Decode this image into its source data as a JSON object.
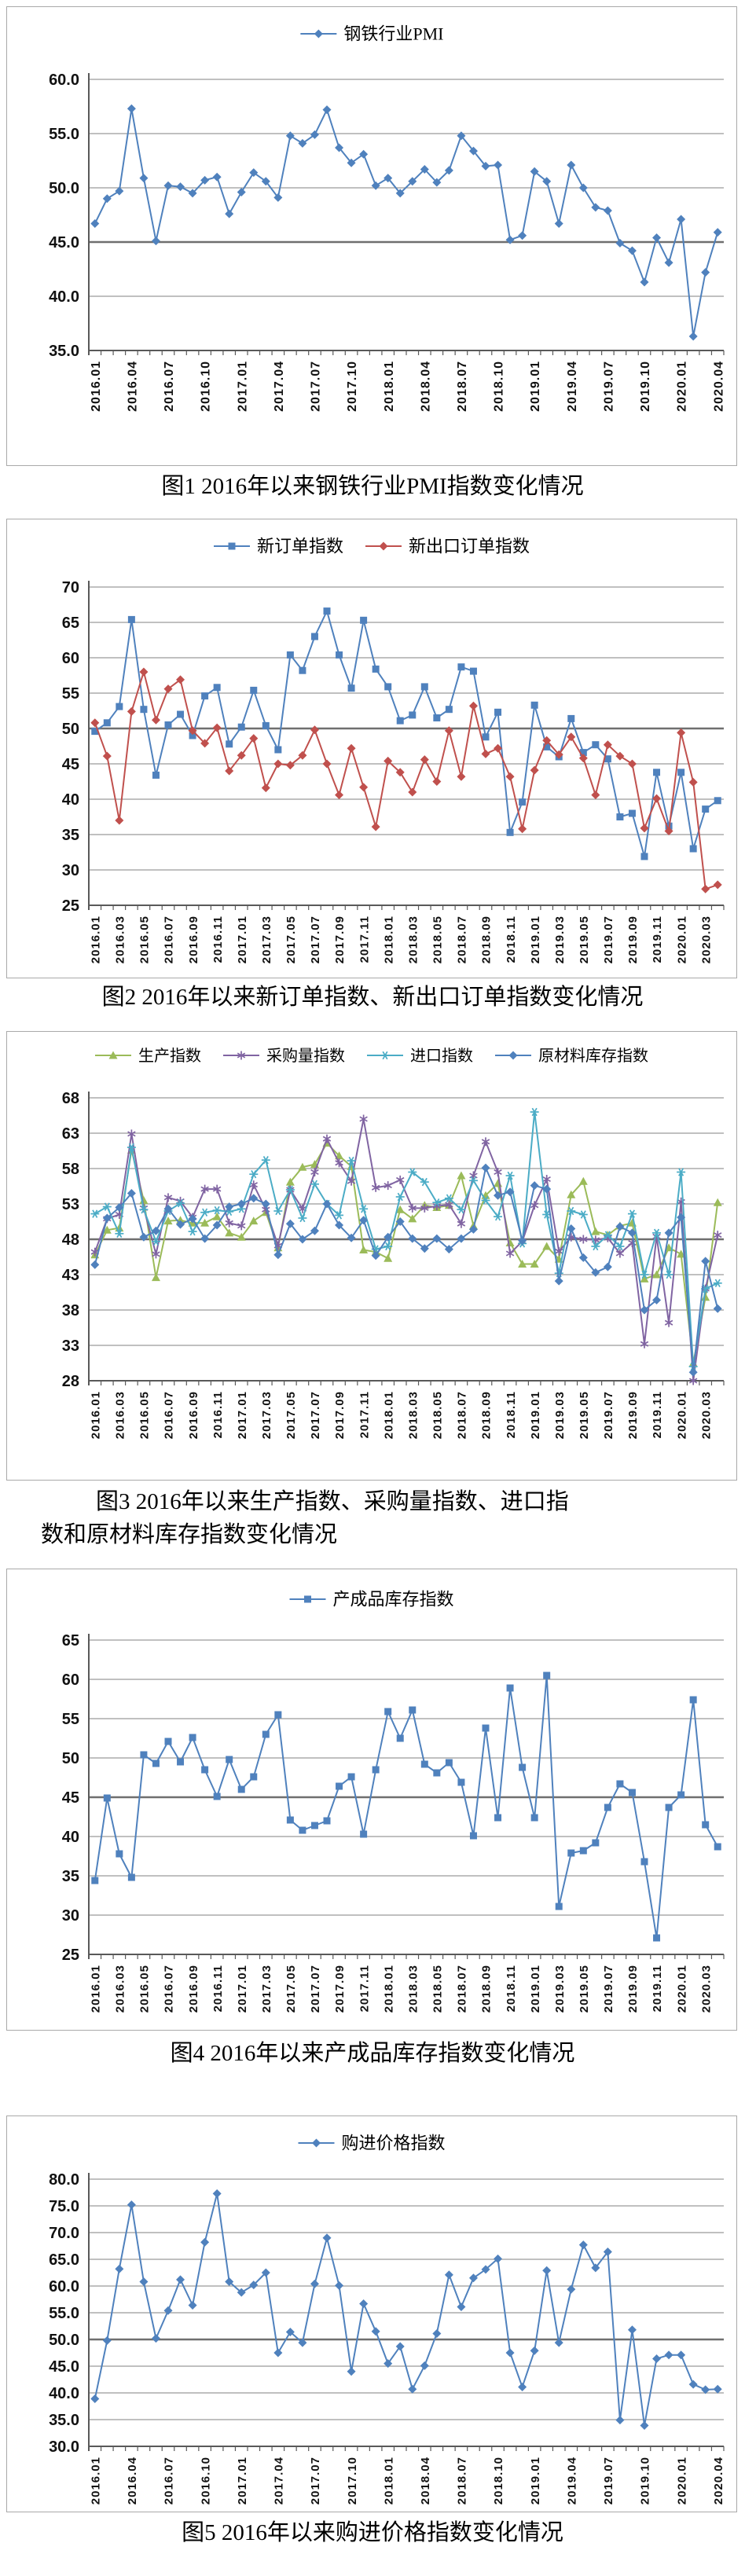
{
  "page": {
    "background": "#ffffff"
  },
  "colors": {
    "blue": "#4F81BD",
    "red": "#C0504D",
    "green": "#9BBB59",
    "purple": "#8064A2",
    "cyan": "#4BACC6",
    "grid": "#9a9a9a",
    "grid_bold": "#6f6f6f",
    "axis": "#595959",
    "text": "#000000",
    "box_border": "#a9a9a9"
  },
  "chart_data": [
    {
      "type": "line",
      "caption": "图1 2016年以来钢铁行业PMI指数变化情况",
      "legend_position": "top",
      "categories": [
        "2016.01",
        "2016.02",
        "2016.03",
        "2016.04",
        "2016.05",
        "2016.06",
        "2016.07",
        "2016.08",
        "2016.09",
        "2016.10",
        "2016.11",
        "2016.12",
        "2017.01",
        "2017.02",
        "2017.03",
        "2017.04",
        "2017.05",
        "2017.06",
        "2017.07",
        "2017.08",
        "2017.09",
        "2017.10",
        "2017.11",
        "2017.12",
        "2018.01",
        "2018.02",
        "2018.03",
        "2018.04",
        "2018.05",
        "2018.06",
        "2018.07",
        "2018.08",
        "2018.09",
        "2018.10",
        "2018.11",
        "2018.12",
        "2019.01",
        "2019.02",
        "2019.03",
        "2019.04",
        "2019.05",
        "2019.06",
        "2019.07",
        "2019.08",
        "2019.09",
        "2019.10",
        "2019.11",
        "2019.12",
        "2020.01",
        "2020.02",
        "2020.03",
        "2020.04"
      ],
      "x_ticks": {
        "interval": 3,
        "labels": [
          "2016.01",
          "2016.04",
          "2016.07",
          "2016.10",
          "2017.01",
          "2017.04",
          "2017.07",
          "2017.10",
          "2018.01",
          "2018.04",
          "2018.07",
          "2018.10",
          "2019.01",
          "2019.04",
          "2019.07",
          "2019.10",
          "2020.01",
          "2020.04"
        ]
      },
      "y_axis": {
        "min": 35,
        "max": 60,
        "step": 5,
        "decimals": 1,
        "bold": 45
      },
      "series": [
        {
          "name": "钢铁行业PMI",
          "marker": "diamond",
          "color": "blue",
          "values": [
            46.7,
            49.0,
            49.7,
            57.3,
            50.9,
            45.1,
            50.2,
            50.1,
            49.5,
            50.7,
            51.0,
            47.6,
            49.6,
            51.4,
            50.6,
            49.1,
            54.8,
            54.1,
            54.9,
            57.2,
            53.7,
            52.3,
            53.1,
            50.2,
            50.9,
            49.5,
            50.6,
            51.7,
            50.5,
            51.6,
            54.8,
            53.4,
            52.0,
            52.1,
            45.2,
            45.6,
            51.5,
            50.6,
            46.7,
            52.1,
            50.0,
            48.2,
            47.9,
            44.9,
            44.2,
            41.3,
            45.4,
            43.1,
            47.1,
            36.3,
            42.2,
            45.9
          ]
        }
      ]
    },
    {
      "type": "line",
      "caption": "图2 2016年以来新订单指数、新出口订单指数变化情况",
      "legend_position": "top",
      "categories": [
        "2016.01",
        "2016.02",
        "2016.03",
        "2016.04",
        "2016.05",
        "2016.06",
        "2016.07",
        "2016.08",
        "2016.09",
        "2016.10",
        "2016.11",
        "2016.12",
        "2017.01",
        "2017.02",
        "2017.03",
        "2017.04",
        "2017.05",
        "2017.06",
        "2017.07",
        "2017.08",
        "2017.09",
        "2017.10",
        "2017.11",
        "2017.12",
        "2018.01",
        "2018.02",
        "2018.03",
        "2018.04",
        "2018.05",
        "2018.06",
        "2018.07",
        "2018.08",
        "2018.09",
        "2018.10",
        "2018.11",
        "2018.12",
        "2019.01",
        "2019.02",
        "2019.03",
        "2019.04",
        "2019.05",
        "2019.06",
        "2019.07",
        "2019.08",
        "2019.09",
        "2019.10",
        "2019.11",
        "2019.12",
        "2020.01",
        "2020.02",
        "2020.03",
        "2020.04"
      ],
      "x_ticks": {
        "interval": 2,
        "labels": [
          "2016.01",
          "2016.03",
          "2016.05",
          "2016.07",
          "2016.09",
          "2016.11",
          "2017.01",
          "2017.03",
          "2017.05",
          "2017.07",
          "2017.09",
          "2017.11",
          "2018.01",
          "2018.03",
          "2018.05",
          "2018.07",
          "2018.09",
          "2018.11",
          "2019.01",
          "2019.03",
          "2019.05",
          "2019.07",
          "2019.09",
          "2019.11",
          "2020.01",
          "2020.03"
        ]
      },
      "y_axis": {
        "min": 25,
        "max": 70,
        "step": 5,
        "decimals": 0,
        "bold": 50
      },
      "series": [
        {
          "name": "新订单指数",
          "marker": "square",
          "color": "blue",
          "values": [
            49.6,
            50.8,
            53.1,
            65.4,
            52.7,
            43.4,
            50.5,
            52.0,
            49.0,
            54.6,
            55.8,
            47.8,
            50.2,
            55.4,
            50.4,
            47.0,
            60.4,
            58.2,
            63.0,
            66.6,
            60.4,
            55.7,
            65.3,
            58.4,
            55.9,
            51.1,
            51.9,
            55.9,
            51.5,
            52.7,
            58.7,
            58.1,
            48.8,
            52.3,
            35.3,
            39.6,
            53.3,
            47.4,
            46.0,
            51.4,
            46.6,
            47.7,
            45.7,
            37.5,
            38.0,
            31.9,
            43.8,
            36.2,
            43.8,
            33.0,
            38.6,
            39.8
          ]
        },
        {
          "name": "新出口订单指数",
          "marker": "diamond",
          "color": "red",
          "values": [
            50.8,
            46.1,
            37.0,
            52.4,
            58.0,
            51.2,
            55.6,
            56.9,
            49.7,
            47.9,
            50.1,
            44.0,
            46.2,
            48.6,
            41.6,
            45.0,
            44.8,
            46.2,
            49.8,
            45.0,
            40.6,
            47.2,
            41.7,
            36.1,
            45.4,
            43.8,
            41.0,
            45.6,
            42.5,
            49.7,
            43.2,
            53.2,
            46.4,
            47.2,
            43.2,
            35.8,
            44.1,
            48.3,
            46.3,
            48.8,
            45.8,
            40.6,
            47.7,
            46.1,
            45.0,
            35.9,
            40.1,
            35.5,
            49.4,
            42.4,
            27.3,
            27.9
          ]
        }
      ]
    },
    {
      "type": "line",
      "caption": "图3 2016年以来生产指数、采购量指数、进口指数和原材料库存指数变化情况",
      "caption_lines": [
        "图3 2016年以来生产指数、采购量指数、进口指",
        "数和原材料库存指数变化情况"
      ],
      "legend_position": "top",
      "categories": [
        "2016.01",
        "2016.02",
        "2016.03",
        "2016.04",
        "2016.05",
        "2016.06",
        "2016.07",
        "2016.08",
        "2016.09",
        "2016.10",
        "2016.11",
        "2016.12",
        "2017.01",
        "2017.02",
        "2017.03",
        "2017.04",
        "2017.05",
        "2017.06",
        "2017.07",
        "2017.08",
        "2017.09",
        "2017.10",
        "2017.11",
        "2017.12",
        "2018.01",
        "2018.02",
        "2018.03",
        "2018.04",
        "2018.05",
        "2018.06",
        "2018.07",
        "2018.08",
        "2018.09",
        "2018.10",
        "2018.11",
        "2018.12",
        "2019.01",
        "2019.02",
        "2019.03",
        "2019.04",
        "2019.05",
        "2019.06",
        "2019.07",
        "2019.08",
        "2019.09",
        "2019.10",
        "2019.11",
        "2019.12",
        "2020.01",
        "2020.02",
        "2020.03",
        "2020.04"
      ],
      "x_ticks": {
        "interval": 2,
        "labels": [
          "2016.01",
          "2016.03",
          "2016.05",
          "2016.07",
          "2016.09",
          "2016.11",
          "2017.01",
          "2017.03",
          "2017.05",
          "2017.07",
          "2017.09",
          "2017.11",
          "2018.01",
          "2018.03",
          "2018.05",
          "2018.07",
          "2018.09",
          "2018.11",
          "2019.01",
          "2019.03",
          "2019.05",
          "2019.07",
          "2019.09",
          "2019.11",
          "2020.01",
          "2020.03"
        ]
      },
      "y_axis": {
        "min": 28,
        "max": 68,
        "step": 5,
        "decimals": 0,
        "bold": 48
      },
      "series": [
        {
          "name": "生产指数",
          "marker": "triangle",
          "color": "green",
          "values": [
            45.8,
            49.3,
            49.6,
            60.6,
            53.5,
            42.6,
            50.6,
            50.7,
            50.3,
            50.3,
            51.2,
            48.9,
            48.3,
            50.6,
            51.8,
            46.8,
            56.1,
            58.2,
            58.6,
            61.6,
            59.8,
            58.3,
            46.5,
            46.2,
            45.3,
            52.2,
            50.9,
            52.8,
            52.5,
            52.8,
            57.0,
            49.9,
            54.2,
            55.9,
            47.5,
            44.5,
            44.5,
            47.0,
            45.2,
            54.3,
            56.2,
            49.1,
            48.6,
            49.9,
            50.3,
            42.4,
            43.0,
            46.8,
            45.9,
            30.5,
            39.8,
            53.2
          ]
        },
        {
          "name": "采购量指数",
          "marker": "asterisk",
          "color": "purple",
          "values": [
            46.2,
            50.9,
            51.5,
            62.9,
            52.4,
            45.9,
            53.9,
            53.4,
            51.1,
            55.1,
            55.1,
            50.3,
            49.9,
            55.7,
            52.2,
            47.1,
            55.0,
            52.3,
            57.5,
            62.2,
            58.8,
            56.2,
            65.0,
            55.3,
            55.6,
            56.4,
            52.4,
            52.4,
            52.7,
            52.9,
            50.2,
            57.0,
            61.8,
            57.5,
            46.0,
            47.7,
            52.8,
            56.5,
            46.3,
            48.3,
            48.0,
            47.9,
            48.2,
            46.0,
            47.5,
            33.2,
            48.4,
            36.2,
            53.3,
            28.0,
            41.0,
            48.6
          ]
        },
        {
          "name": "进口指数",
          "marker": "snowflake",
          "color": "cyan",
          "values": [
            51.6,
            52.6,
            48.8,
            61.0,
            52.2,
            47.7,
            52.0,
            53.1,
            49.1,
            51.8,
            52.1,
            51.9,
            52.3,
            57.2,
            59.2,
            52.0,
            55.0,
            51.0,
            55.8,
            53.0,
            51.4,
            59.1,
            52.3,
            46.6,
            47.0,
            54.0,
            57.5,
            56.1,
            53.2,
            53.8,
            52.2,
            56.3,
            53.5,
            51.2,
            57.0,
            47.4,
            66.0,
            51.5,
            43.2,
            52.0,
            51.5,
            47.0,
            48.6,
            47.0,
            51.6,
            43.0,
            48.9,
            43.0,
            57.5,
            30.0,
            41.0,
            41.8
          ]
        },
        {
          "name": "原材料库存指数",
          "marker": "diamond",
          "color": "blue",
          "values": [
            44.4,
            51.0,
            52.5,
            54.5,
            48.3,
            49.2,
            52.3,
            50.1,
            50.9,
            48.1,
            50.0,
            52.6,
            53.0,
            53.8,
            53.0,
            45.8,
            50.2,
            48.0,
            49.2,
            53.0,
            50.0,
            48.2,
            50.7,
            45.7,
            48.3,
            50.5,
            48.1,
            46.7,
            48.1,
            46.6,
            48.1,
            49.4,
            58.1,
            54.2,
            54.7,
            47.8,
            55.6,
            55.1,
            42.1,
            49.5,
            45.4,
            43.3,
            44.1,
            49.8,
            48.9,
            38.0,
            39.4,
            48.9,
            51.1,
            29.2,
            44.9,
            38.2
          ]
        }
      ]
    },
    {
      "type": "line",
      "caption": "图4 2016年以来产成品库存指数变化情况",
      "legend_position": "top",
      "categories": [
        "2016.01",
        "2016.02",
        "2016.03",
        "2016.04",
        "2016.05",
        "2016.06",
        "2016.07",
        "2016.08",
        "2016.09",
        "2016.10",
        "2016.11",
        "2016.12",
        "2017.01",
        "2017.02",
        "2017.03",
        "2017.04",
        "2017.05",
        "2017.06",
        "2017.07",
        "2017.08",
        "2017.09",
        "2017.10",
        "2017.11",
        "2017.12",
        "2018.01",
        "2018.02",
        "2018.03",
        "2018.04",
        "2018.05",
        "2018.06",
        "2018.07",
        "2018.08",
        "2018.09",
        "2018.10",
        "2018.11",
        "2018.12",
        "2019.01",
        "2019.02",
        "2019.03",
        "2019.04",
        "2019.05",
        "2019.06",
        "2019.07",
        "2019.08",
        "2019.09",
        "2019.10",
        "2019.11",
        "2019.12",
        "2020.01",
        "2020.02",
        "2020.03",
        "2020.04"
      ],
      "x_ticks": {
        "interval": 2,
        "labels": [
          "2016.01",
          "2016.03",
          "2016.05",
          "2016.07",
          "2016.09",
          "2016.11",
          "2017.01",
          "2017.03",
          "2017.05",
          "2017.07",
          "2017.09",
          "2017.11",
          "2018.01",
          "2018.03",
          "2018.05",
          "2018.07",
          "2018.09",
          "2018.11",
          "2019.01",
          "2019.03",
          "2019.05",
          "2019.07",
          "2019.09",
          "2019.11",
          "2020.01",
          "2020.03"
        ]
      },
      "y_axis": {
        "min": 25,
        "max": 65,
        "step": 5,
        "decimals": 0,
        "bold": 45
      },
      "series": [
        {
          "name": "产成品库存指数",
          "marker": "square",
          "color": "blue",
          "values": [
            34.4,
            44.9,
            37.8,
            34.8,
            50.4,
            49.3,
            52.1,
            49.5,
            52.6,
            48.5,
            45.1,
            49.8,
            46.0,
            47.6,
            53.0,
            55.5,
            42.1,
            40.8,
            41.4,
            42.0,
            46.4,
            47.6,
            40.3,
            48.5,
            55.9,
            52.5,
            56.1,
            49.2,
            48.1,
            49.4,
            46.9,
            40.1,
            53.8,
            42.4,
            58.9,
            48.8,
            42.4,
            60.5,
            31.1,
            37.9,
            38.2,
            39.2,
            43.7,
            46.7,
            45.6,
            36.8,
            27.1,
            43.7,
            45.3,
            57.4,
            41.5,
            38.7
          ]
        }
      ]
    },
    {
      "type": "line",
      "caption": "图5 2016年以来购进价格指数变化情况",
      "legend_position": "top",
      "categories": [
        "2016.01",
        "2016.02",
        "2016.03",
        "2016.04",
        "2016.05",
        "2016.06",
        "2016.07",
        "2016.08",
        "2016.09",
        "2016.10",
        "2016.11",
        "2016.12",
        "2017.01",
        "2017.02",
        "2017.03",
        "2017.04",
        "2017.05",
        "2017.06",
        "2017.07",
        "2017.08",
        "2017.09",
        "2017.10",
        "2017.11",
        "2017.12",
        "2018.01",
        "2018.02",
        "2018.03",
        "2018.04",
        "2018.05",
        "2018.06",
        "2018.07",
        "2018.08",
        "2018.09",
        "2018.10",
        "2018.11",
        "2018.12",
        "2019.01",
        "2019.02",
        "2019.03",
        "2019.04",
        "2019.05",
        "2019.06",
        "2019.07",
        "2019.08",
        "2019.09",
        "2019.10",
        "2019.11",
        "2019.12",
        "2020.01",
        "2020.02",
        "2020.03",
        "2020.04"
      ],
      "x_ticks": {
        "interval": 3,
        "labels": [
          "2016.01",
          "2016.04",
          "2016.07",
          "2016.10",
          "2017.01",
          "2017.04",
          "2017.07",
          "2017.10",
          "2018.01",
          "2018.04",
          "2018.07",
          "2018.10",
          "2019.01",
          "2019.04",
          "2019.07",
          "2019.10",
          "2020.01",
          "2020.04"
        ]
      },
      "y_axis": {
        "min": 30,
        "max": 80,
        "step": 5,
        "decimals": 1,
        "bold": 50
      },
      "series": [
        {
          "name": "购进价格指数",
          "marker": "diamond",
          "color": "blue",
          "values": [
            38.9,
            49.8,
            63.2,
            75.2,
            60.8,
            50.2,
            55.4,
            61.2,
            56.4,
            68.2,
            77.3,
            60.8,
            58.8,
            60.2,
            62.5,
            47.5,
            51.4,
            49.4,
            60.4,
            69.0,
            60.1,
            44.0,
            56.7,
            51.5,
            45.5,
            48.7,
            40.7,
            45.1,
            51.1,
            62.1,
            56.1,
            61.5,
            63.1,
            65.1,
            47.5,
            41.1,
            47.9,
            62.9,
            49.4,
            59.4,
            67.7,
            63.4,
            66.4,
            34.9,
            51.8,
            33.9,
            46.4,
            47.1,
            47.1,
            41.6,
            40.6,
            40.7
          ]
        }
      ]
    }
  ]
}
